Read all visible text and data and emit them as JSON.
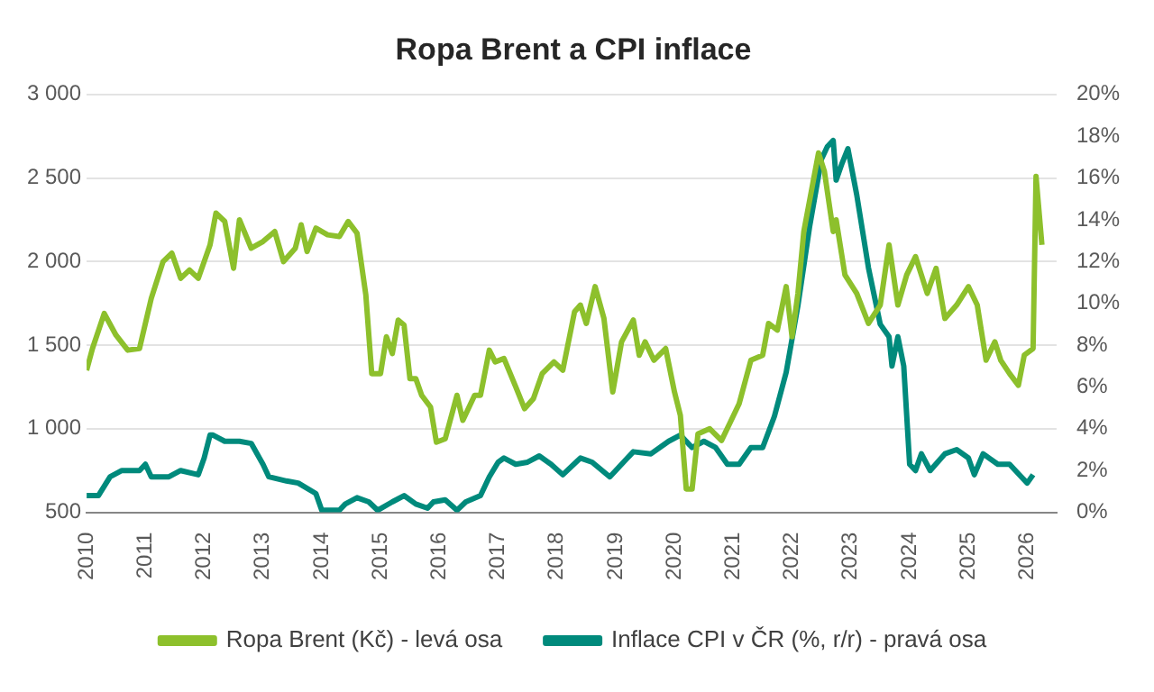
{
  "chart_data": {
    "type": "line",
    "title": "Ropa Brent a CPI inflace",
    "xlim": [
      2010,
      2026.5
    ],
    "xticks": [
      2010,
      2011,
      2012,
      2013,
      2014,
      2015,
      2016,
      2017,
      2018,
      2019,
      2020,
      2021,
      2022,
      2023,
      2024,
      2025,
      2026
    ],
    "ylim": [
      500,
      3000
    ],
    "yticks": [
      {
        "value": 500,
        "label": "500"
      },
      {
        "value": 1000,
        "label": "1 000"
      },
      {
        "value": 1500,
        "label": "1 500"
      },
      {
        "value": 2000,
        "label": "2 000"
      },
      {
        "value": 2500,
        "label": "2 500"
      },
      {
        "value": 3000,
        "label": "3 000"
      }
    ],
    "y2lim": [
      0,
      20
    ],
    "y2ticks": [
      {
        "value": 0,
        "label": "0%"
      },
      {
        "value": 2,
        "label": "2%"
      },
      {
        "value": 4,
        "label": "4%"
      },
      {
        "value": 6,
        "label": "6%"
      },
      {
        "value": 8,
        "label": "8%"
      },
      {
        "value": 10,
        "label": "10%"
      },
      {
        "value": 12,
        "label": "12%"
      },
      {
        "value": 14,
        "label": "14%"
      },
      {
        "value": 16,
        "label": "16%"
      },
      {
        "value": 18,
        "label": "18%"
      },
      {
        "value": 20,
        "label": "20%"
      }
    ],
    "grid": "y",
    "legend": "bottom",
    "marker": "none",
    "series": [
      {
        "name": "Ropa Brent (Kč) - levá osa",
        "color": "#8dc02c",
        "x": [
          2010.0,
          2010.1,
          2010.3,
          2010.5,
          2010.7,
          2010.9,
          2011.1,
          2011.3,
          2011.45,
          2011.6,
          2011.75,
          2011.9,
          2012.1,
          2012.2,
          2012.35,
          2012.5,
          2012.6,
          2012.8,
          2013.0,
          2013.2,
          2013.35,
          2013.55,
          2013.65,
          2013.75,
          2013.9,
          2014.1,
          2014.3,
          2014.45,
          2014.6,
          2014.75,
          2014.85,
          2015.0,
          2015.1,
          2015.2,
          2015.3,
          2015.4,
          2015.5,
          2015.6,
          2015.7,
          2015.85,
          2015.95,
          2016.1,
          2016.3,
          2016.4,
          2016.6,
          2016.7,
          2016.85,
          2016.95,
          2017.1,
          2017.3,
          2017.45,
          2017.6,
          2017.75,
          2017.95,
          2018.1,
          2018.3,
          2018.4,
          2018.5,
          2018.65,
          2018.8,
          2018.95,
          2019.1,
          2019.3,
          2019.4,
          2019.5,
          2019.65,
          2019.85,
          2020.0,
          2020.1,
          2020.2,
          2020.3,
          2020.4,
          2020.6,
          2020.8,
          2020.95,
          2021.1,
          2021.3,
          2021.5,
          2021.6,
          2021.75,
          2021.9,
          2022.0,
          2022.1,
          2022.2,
          2022.45,
          2022.55,
          2022.7,
          2022.75,
          2022.9,
          2023.1,
          2023.3,
          2023.5,
          2023.65,
          2023.8,
          2023.95,
          2024.1,
          2024.3,
          2024.45,
          2024.6,
          2024.8,
          2025.0,
          2025.15,
          2025.3,
          2025.45,
          2025.55,
          2025.7,
          2025.85,
          2025.95,
          2026.1,
          2026.15,
          2026.25
        ],
        "values": [
          1350,
          1480,
          1690,
          1560,
          1470,
          1480,
          1780,
          2000,
          2050,
          1900,
          1950,
          1900,
          2100,
          2290,
          2240,
          1960,
          2250,
          2080,
          2120,
          2180,
          2000,
          2080,
          2220,
          2060,
          2200,
          2160,
          2150,
          2240,
          2170,
          1800,
          1330,
          1330,
          1550,
          1450,
          1650,
          1620,
          1300,
          1300,
          1200,
          1130,
          920,
          940,
          1200,
          1050,
          1200,
          1200,
          1470,
          1400,
          1420,
          1250,
          1120,
          1180,
          1330,
          1400,
          1350,
          1700,
          1740,
          1630,
          1850,
          1660,
          1220,
          1520,
          1650,
          1440,
          1520,
          1410,
          1480,
          1220,
          1080,
          640,
          640,
          970,
          1000,
          930,
          1040,
          1150,
          1410,
          1440,
          1630,
          1590,
          1850,
          1550,
          1810,
          2180,
          2650,
          2540,
          2180,
          2250,
          1920,
          1810,
          1630,
          1740,
          2100,
          1740,
          1920,
          2030,
          1810,
          1960,
          1660,
          1740,
          1850,
          1740,
          1410,
          1520,
          1410,
          1330,
          1260,
          1440,
          1480,
          2510,
          2100
        ]
      },
      {
        "name": "Inflace CPI v ČR (%, r/r) - pravá osa",
        "color": "#008a7c",
        "axis": "y2",
        "x": [
          2010.0,
          2010.2,
          2010.4,
          2010.6,
          2010.9,
          2011.0,
          2011.1,
          2011.4,
          2011.6,
          2011.9,
          2012.0,
          2012.1,
          2012.15,
          2012.35,
          2012.6,
          2012.8,
          2013.0,
          2013.1,
          2013.4,
          2013.6,
          2013.9,
          2014.0,
          2014.3,
          2014.4,
          2014.6,
          2014.8,
          2014.95,
          2015.2,
          2015.4,
          2015.6,
          2015.8,
          2015.9,
          2016.1,
          2016.3,
          2016.45,
          2016.7,
          2016.85,
          2017.0,
          2017.1,
          2017.3,
          2017.5,
          2017.7,
          2017.9,
          2018.1,
          2018.4,
          2018.6,
          2018.9,
          2019.2,
          2019.3,
          2019.6,
          2019.9,
          2020.1,
          2020.3,
          2020.5,
          2020.7,
          2020.9,
          2021.1,
          2021.3,
          2021.5,
          2021.7,
          2021.9,
          2022.1,
          2022.3,
          2022.5,
          2022.6,
          2022.7,
          2022.75,
          2022.85,
          2022.95,
          2023.1,
          2023.3,
          2023.5,
          2023.65,
          2023.7,
          2023.8,
          2023.9,
          2024.0,
          2024.1,
          2024.2,
          2024.35,
          2024.6,
          2024.8,
          2025.0,
          2025.1,
          2025.25,
          2025.5,
          2025.7,
          2025.9,
          2026.0,
          2026.1
        ],
        "values": [
          0.8,
          0.8,
          1.7,
          2.0,
          2.0,
          2.3,
          1.7,
          1.7,
          2.0,
          1.8,
          2.6,
          3.7,
          3.7,
          3.4,
          3.4,
          3.3,
          2.3,
          1.7,
          1.5,
          1.4,
          0.9,
          0.1,
          0.1,
          0.4,
          0.7,
          0.5,
          0.1,
          0.5,
          0.8,
          0.4,
          0.2,
          0.5,
          0.6,
          0.1,
          0.5,
          0.8,
          1.7,
          2.4,
          2.6,
          2.3,
          2.4,
          2.7,
          2.3,
          1.8,
          2.6,
          2.4,
          1.7,
          2.6,
          2.9,
          2.8,
          3.4,
          3.7,
          3.1,
          3.4,
          3.1,
          2.3,
          2.3,
          3.1,
          3.1,
          4.6,
          6.7,
          9.9,
          13.7,
          16.9,
          17.5,
          17.8,
          15.9,
          16.7,
          17.4,
          15.2,
          11.7,
          9.0,
          8.4,
          7.0,
          8.4,
          7.0,
          2.3,
          2.0,
          2.8,
          2.0,
          2.8,
          3.0,
          2.6,
          1.8,
          2.8,
          2.3,
          2.3,
          1.7,
          1.4,
          1.8
        ]
      }
    ]
  }
}
